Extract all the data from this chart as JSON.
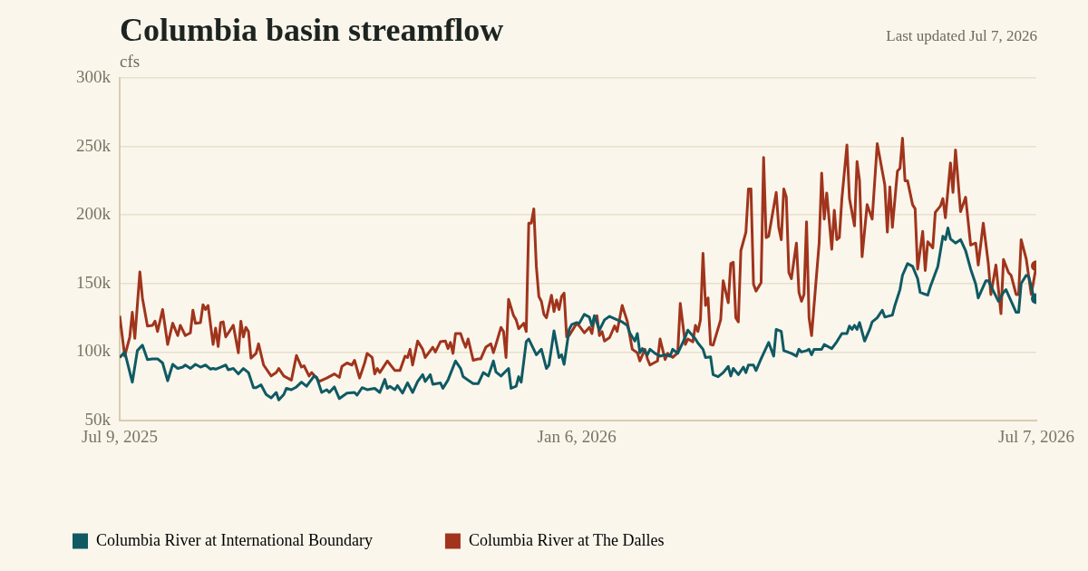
{
  "chart_data": {
    "type": "line",
    "title": "Columbia basin streamflow",
    "ylabel": "cfs",
    "annotations": [
      "Last updated Jul 7, 2026"
    ],
    "ylim": [
      50000,
      300000
    ],
    "yticks": [
      {
        "value": 50000,
        "label": "50k"
      },
      {
        "value": 100000,
        "label": "100k"
      },
      {
        "value": 150000,
        "label": "150k"
      },
      {
        "value": 200000,
        "label": "200k"
      },
      {
        "value": 250000,
        "label": "250k"
      },
      {
        "value": 300000,
        "label": "300k"
      }
    ],
    "xlim": [
      "2025-07-09",
      "2026-07-07"
    ],
    "xticks": [
      {
        "value": "2025-07-09",
        "label": "Jul 9, 2025"
      },
      {
        "value": "2026-01-06",
        "label": "Jan 6, 2026"
      },
      {
        "value": "2026-07-07",
        "label": "Jul 7, 2026"
      }
    ],
    "grid": "y",
    "legend": "bottom left",
    "line_style": "solid",
    "series": [
      {
        "name": "Columbia River at International Boundary",
        "color": "#0f5a63",
        "x": [
          "2025-07-09",
          "2025-07-11",
          "2025-07-14",
          "2025-07-16",
          "2025-07-18",
          "2025-07-20",
          "2025-07-22",
          "2025-07-24",
          "2025-07-26",
          "2025-07-28",
          "2025-07-30",
          "2025-08-01",
          "2025-08-03",
          "2025-08-04",
          "2025-08-06",
          "2025-08-08",
          "2025-08-10",
          "2025-08-12",
          "2025-08-14",
          "2025-08-15",
          "2025-08-16",
          "2025-08-18",
          "2025-08-20",
          "2025-08-21",
          "2025-08-23",
          "2025-08-25",
          "2025-08-27",
          "2025-08-29",
          "2025-08-31",
          "2025-09-01",
          "2025-09-03",
          "2025-09-05",
          "2025-09-07",
          "2025-09-09",
          "2025-09-10",
          "2025-09-12",
          "2025-09-13",
          "2025-09-15",
          "2025-09-17",
          "2025-09-19",
          "2025-09-21",
          "2025-09-24",
          "2025-09-25",
          "2025-09-27",
          "2025-09-29",
          "2025-09-30",
          "2025-10-02",
          "2025-10-04",
          "2025-10-07",
          "2025-10-10",
          "2025-10-11",
          "2025-10-13",
          "2025-10-15",
          "2025-10-18",
          "2025-10-20",
          "2025-10-22",
          "2025-10-23",
          "2025-10-24",
          "2025-10-26",
          "2025-10-27",
          "2025-10-29",
          "2025-10-31",
          "2025-11-02",
          "2025-11-04",
          "2025-11-06",
          "2025-11-07",
          "2025-11-09",
          "2025-11-10",
          "2025-11-13",
          "2025-11-14",
          "2025-11-16",
          "2025-11-19",
          "2025-11-21",
          "2025-11-22",
          "2025-11-24",
          "2025-11-26",
          "2025-11-28",
          "2025-11-30",
          "2025-12-02",
          "2025-12-04",
          "2025-12-05",
          "2025-12-07",
          "2025-12-10",
          "2025-12-11",
          "2025-12-13",
          "2025-12-14",
          "2025-12-15",
          "2025-12-17",
          "2025-12-18",
          "2025-12-21",
          "2025-12-23",
          "2025-12-25",
          "2025-12-26",
          "2025-12-28",
          "2025-12-30",
          "2025-12-31",
          "2026-01-01",
          "2026-01-03",
          "2026-01-04",
          "2026-01-06",
          "2026-01-07",
          "2026-01-09",
          "2026-01-11",
          "2026-01-12",
          "2026-01-13",
          "2026-01-15",
          "2026-01-17",
          "2026-01-19",
          "2026-01-22",
          "2026-01-24",
          "2026-01-26",
          "2026-01-27",
          "2026-01-29",
          "2026-01-30",
          "2026-01-31",
          "2026-02-01",
          "2026-02-03",
          "2026-02-04",
          "2026-02-06",
          "2026-02-08",
          "2026-02-10",
          "2026-02-12",
          "2026-02-13",
          "2026-02-15",
          "2026-02-18",
          "2026-02-19",
          "2026-02-22",
          "2026-02-23",
          "2026-02-25",
          "2026-02-26",
          "2026-02-28",
          "2026-03-01",
          "2026-03-03",
          "2026-03-05",
          "2026-03-07",
          "2026-03-08",
          "2026-03-09",
          "2026-03-11",
          "2026-03-13",
          "2026-03-14",
          "2026-03-15",
          "2026-03-17",
          "2026-03-18",
          "2026-03-20",
          "2026-03-23",
          "2026-03-25",
          "2026-03-26",
          "2026-03-28",
          "2026-03-29",
          "2026-04-01",
          "2026-04-03",
          "2026-04-04",
          "2026-04-05",
          "2026-04-07",
          "2026-04-08",
          "2026-04-09",
          "2026-04-10",
          "2026-04-13",
          "2026-04-14",
          "2026-04-17",
          "2026-04-19",
          "2026-04-20",
          "2026-04-21",
          "2026-04-23",
          "2026-04-24",
          "2026-04-25",
          "2026-04-26",
          "2026-04-27",
          "2026-04-28",
          "2026-04-30",
          "2026-05-02",
          "2026-05-03",
          "2026-05-05",
          "2026-05-07",
          "2026-05-08",
          "2026-05-11",
          "2026-05-12",
          "2026-05-14",
          "2026-05-15",
          "2026-05-17",
          "2026-05-19",
          "2026-05-21",
          "2026-05-22",
          "2026-05-25",
          "2026-05-26",
          "2026-05-29",
          "2026-05-31",
          "2026-06-01",
          "2026-06-02",
          "2026-06-03",
          "2026-06-05",
          "2026-06-07",
          "2026-06-09",
          "2026-06-11",
          "2026-06-13",
          "2026-06-14",
          "2026-06-17",
          "2026-06-18",
          "2026-06-20",
          "2026-06-22",
          "2026-06-24",
          "2026-06-25",
          "2026-06-29",
          "2026-06-30",
          "2026-07-01",
          "2026-07-03",
          "2026-07-04",
          "2026-07-06",
          "2026-07-07"
        ],
        "values": [
          96000,
          100000,
          78000,
          101000,
          105000,
          94500,
          95000,
          95000,
          92000,
          79000,
          91000,
          88000,
          89000,
          90500,
          88000,
          91000,
          89000,
          90500,
          87500,
          88000,
          87500,
          89000,
          90500,
          87000,
          88000,
          84000,
          88000,
          85000,
          74000,
          74000,
          76000,
          69000,
          66500,
          70500,
          65000,
          69000,
          73500,
          72500,
          74500,
          78000,
          75000,
          82500,
          81500,
          70500,
          72500,
          70500,
          74500,
          66000,
          70000,
          70500,
          68500,
          74000,
          72500,
          73500,
          70500,
          80000,
          73500,
          75000,
          72500,
          75500,
          70000,
          77500,
          70500,
          78500,
          83500,
          78500,
          83500,
          76500,
          77500,
          73500,
          79500,
          93500,
          88000,
          82000,
          79500,
          77000,
          77000,
          85000,
          82500,
          93500,
          85500,
          82500,
          88000,
          73500,
          75000,
          82000,
          78000,
          107500,
          109500,
          98000,
          102000,
          88000,
          90500,
          115500,
          96000,
          98000,
          91000,
          116500,
          120000,
          121500,
          121000,
          127500,
          125500,
          119000,
          126500,
          116000,
          123500,
          126000,
          123500,
          122000,
          119500,
          114000,
          108000,
          113500,
          99500,
          102500,
          98000,
          102000,
          99000,
          97000,
          98000,
          97000,
          102000,
          99000,
          111000,
          116000,
          109500,
          106500,
          102000,
          96000,
          96500,
          83500,
          82000,
          85000,
          89500,
          82500,
          88000,
          83500,
          89000,
          85000,
          90500,
          90500,
          86500,
          95000,
          107000,
          97000,
          116500,
          115000,
          101000,
          99000,
          97000,
          102000,
          100000,
          101000,
          102000,
          98000,
          102000,
          102000,
          105500,
          102500,
          107500,
          110500,
          113500,
          113500,
          119000,
          116500,
          119500,
          116500,
          121500,
          108000,
          116500,
          122000,
          125000,
          130500,
          125500,
          127000,
          134000,
          145500,
          156000,
          164500,
          162500,
          153500,
          143500,
          141500,
          147500,
          162500,
          184500,
          182000,
          190500,
          182500,
          179500,
          182000,
          174000,
          160500,
          149500,
          139500,
          152000,
          152000,
          144500,
          137000,
          143500,
          145500,
          129000,
          129000,
          150000,
          156000,
          155000,
          140000,
          139000
        ]
      },
      {
        "name": "Columbia River at The Dalles",
        "color": "#a0341c",
        "x": [
          "2025-07-09",
          "2025-07-11",
          "2025-07-13",
          "2025-07-14",
          "2025-07-15",
          "2025-07-17",
          "2025-07-18",
          "2025-07-20",
          "2025-07-22",
          "2025-07-23",
          "2025-07-24",
          "2025-07-26",
          "2025-07-28",
          "2025-07-30",
          "2025-08-01",
          "2025-08-02",
          "2025-08-04",
          "2025-08-06",
          "2025-08-07",
          "2025-08-08",
          "2025-08-10",
          "2025-08-11",
          "2025-08-12",
          "2025-08-13",
          "2025-08-15",
          "2025-08-16",
          "2025-08-17",
          "2025-08-18",
          "2025-08-19",
          "2025-08-20",
          "2025-08-23",
          "2025-08-25",
          "2025-08-26",
          "2025-08-27",
          "2025-08-28",
          "2025-08-29",
          "2025-08-30",
          "2025-09-01",
          "2025-09-02",
          "2025-09-04",
          "2025-09-07",
          "2025-09-09",
          "2025-09-10",
          "2025-09-12",
          "2025-09-15",
          "2025-09-17",
          "2025-09-19",
          "2025-09-20",
          "2025-09-22",
          "2025-09-23",
          "2025-09-25",
          "2025-09-26",
          "2025-09-29",
          "2025-10-02",
          "2025-10-04",
          "2025-10-05",
          "2025-10-07",
          "2025-10-09",
          "2025-10-10",
          "2025-10-12",
          "2025-10-14",
          "2025-10-15",
          "2025-10-17",
          "2025-10-18",
          "2025-10-19",
          "2025-10-20",
          "2025-10-23",
          "2025-10-26",
          "2025-10-28",
          "2025-10-30",
          "2025-10-31",
          "2025-11-01",
          "2025-11-02",
          "2025-11-04",
          "2025-11-06",
          "2025-11-07",
          "2025-11-10",
          "2025-11-11",
          "2025-11-13",
          "2025-11-15",
          "2025-11-16",
          "2025-11-17",
          "2025-11-18",
          "2025-11-19",
          "2025-11-21",
          "2025-11-22",
          "2025-11-23",
          "2025-11-24",
          "2025-11-26",
          "2025-11-28",
          "2025-11-29",
          "2025-12-01",
          "2025-12-03",
          "2025-12-04",
          "2025-12-05",
          "2025-12-07",
          "2025-12-08",
          "2025-12-09",
          "2025-12-10",
          "2025-12-12",
          "2025-12-13",
          "2025-12-14",
          "2025-12-16",
          "2025-12-17",
          "2025-12-18",
          "2025-12-19",
          "2025-12-20",
          "2025-12-21",
          "2025-12-22",
          "2025-12-23",
          "2025-12-24",
          "2025-12-25",
          "2025-12-27",
          "2025-12-28",
          "2025-12-29",
          "2025-12-30",
          "2025-12-31",
          "2026-01-01",
          "2026-01-02",
          "2026-01-03",
          "2026-01-06",
          "2026-01-07",
          "2026-01-09",
          "2026-01-11",
          "2026-01-12",
          "2026-01-13",
          "2026-01-14",
          "2026-01-15",
          "2026-01-16",
          "2026-01-17",
          "2026-01-19",
          "2026-01-21",
          "2026-01-22",
          "2026-01-24",
          "2026-01-26",
          "2026-01-28",
          "2026-01-30",
          "2026-01-31",
          "2026-02-02",
          "2026-02-03",
          "2026-02-04",
          "2026-02-07",
          "2026-02-08",
          "2026-02-10",
          "2026-02-11",
          "2026-02-13",
          "2026-02-15",
          "2026-02-16",
          "2026-02-18",
          "2026-02-19",
          "2026-02-21",
          "2026-02-22",
          "2026-02-23",
          "2026-02-24",
          "2026-02-25",
          "2026-02-26",
          "2026-02-27",
          "2026-02-28",
          "2026-03-01",
          "2026-03-04",
          "2026-03-05",
          "2026-03-07",
          "2026-03-08",
          "2026-03-09",
          "2026-03-10",
          "2026-03-11",
          "2026-03-12",
          "2026-03-14",
          "2026-03-15",
          "2026-03-16",
          "2026-03-17",
          "2026-03-18",
          "2026-03-20",
          "2026-03-21",
          "2026-03-22",
          "2026-03-23",
          "2026-03-26",
          "2026-03-27",
          "2026-03-28",
          "2026-03-29",
          "2026-03-30",
          "2026-03-31",
          "2026-04-01",
          "2026-04-03",
          "2026-04-04",
          "2026-04-05",
          "2026-04-06",
          "2026-04-07",
          "2026-04-08",
          "2026-04-09",
          "2026-04-12",
          "2026-04-13",
          "2026-04-14",
          "2026-04-15",
          "2026-04-17",
          "2026-04-18",
          "2026-04-19",
          "2026-04-20",
          "2026-04-21",
          "2026-04-23",
          "2026-04-24",
          "2026-04-26",
          "2026-04-27",
          "2026-04-28",
          "2026-04-29",
          "2026-05-01",
          "2026-05-03",
          "2026-05-05",
          "2026-05-08",
          "2026-05-09",
          "2026-05-10",
          "2026-05-11",
          "2026-05-13",
          "2026-05-14",
          "2026-05-15",
          "2026-05-16",
          "2026-05-17",
          "2026-05-19",
          "2026-05-20",
          "2026-05-21",
          "2026-05-23",
          "2026-05-24",
          "2026-05-25",
          "2026-05-27",
          "2026-05-28",
          "2026-05-30",
          "2026-05-31",
          "2026-06-01",
          "2026-06-03",
          "2026-06-04",
          "2026-06-05",
          "2026-06-07",
          "2026-06-09",
          "2026-06-11",
          "2026-06-13",
          "2026-06-14",
          "2026-06-16",
          "2026-06-18",
          "2026-06-19",
          "2026-06-21",
          "2026-06-23",
          "2026-06-24",
          "2026-06-26",
          "2026-06-27",
          "2026-06-29",
          "2026-06-30",
          "2026-07-01",
          "2026-07-03",
          "2026-07-05",
          "2026-07-07"
        ],
        "values": [
          126500,
          97000,
          111000,
          129000,
          110000,
          158500,
          139500,
          119000,
          119500,
          122500,
          115000,
          131000,
          105500,
          121000,
          112000,
          119500,
          112000,
          114000,
          130500,
          121000,
          121500,
          134500,
          131000,
          134000,
          105500,
          117500,
          104000,
          121500,
          122000,
          111000,
          119500,
          99500,
          122500,
          111000,
          118000,
          115000,
          95500,
          99000,
          106000,
          90500,
          82500,
          85000,
          88000,
          82500,
          79500,
          97500,
          89000,
          90000,
          82500,
          85000,
          81000,
          78500,
          81000,
          84000,
          81500,
          89500,
          92000,
          90500,
          94000,
          81000,
          92000,
          99000,
          96000,
          84000,
          88000,
          85000,
          93500,
          86500,
          86500,
          97000,
          96000,
          102000,
          90500,
          108000,
          102000,
          96000,
          103500,
          100000,
          107500,
          108000,
          102500,
          107000,
          99000,
          113500,
          113500,
          108000,
          103500,
          109500,
          94000,
          95000,
          95000,
          103500,
          106000,
          99500,
          105500,
          118000,
          115000,
          96000,
          138500,
          126500,
          123500,
          117000,
          121000,
          115000,
          194000,
          194000,
          204500,
          162500,
          140500,
          137000,
          127500,
          125000,
          141500,
          129500,
          138000,
          131000,
          140500,
          143000,
          111000,
          112000,
          121000,
          119000,
          114000,
          118000,
          113500,
          125000,
          126500,
          112000,
          115000,
          108000,
          110500,
          119000,
          115000,
          134000,
          122500,
          102000,
          99500,
          93500,
          102000,
          95000,
          90500,
          93500,
          109500,
          94500,
          99000,
          96000,
          99500,
          135500,
          105500,
          109500,
          107500,
          119500,
          115000,
          123500,
          172000,
          134000,
          139500,
          105500,
          105000,
          123500,
          152000,
          136000,
          164500,
          165500,
          125000,
          122000,
          174000,
          187500,
          219000,
          219000,
          149500,
          144500,
          150500,
          242000,
          183500,
          184500,
          216500,
          191000,
          182000,
          219000,
          213000,
          158000,
          153500,
          179500,
          143500,
          137000,
          142000,
          195000,
          125000,
          112000,
          179500,
          230500,
          197000,
          216000,
          175000,
          203500,
          182000,
          183500,
          212000,
          251000,
          212000,
          192000,
          239000,
          225000,
          169500,
          207500,
          197000,
          252000,
          222000,
          187500,
          220500,
          191000,
          232000,
          234000,
          256000,
          225000,
          225000,
          207500,
          204500,
          160500,
          188000,
          159500,
          180500,
          176000,
          202000,
          206500,
          212000,
          198000,
          238000,
          216500,
          247500,
          202500,
          213000,
          178000,
          179500,
          163500,
          194000,
          164500,
          142000,
          163500,
          128000,
          167500,
          158000,
          156000,
          142000,
          142000,
          182000,
          168000,
          142000,
          163000
        ]
      }
    ]
  }
}
